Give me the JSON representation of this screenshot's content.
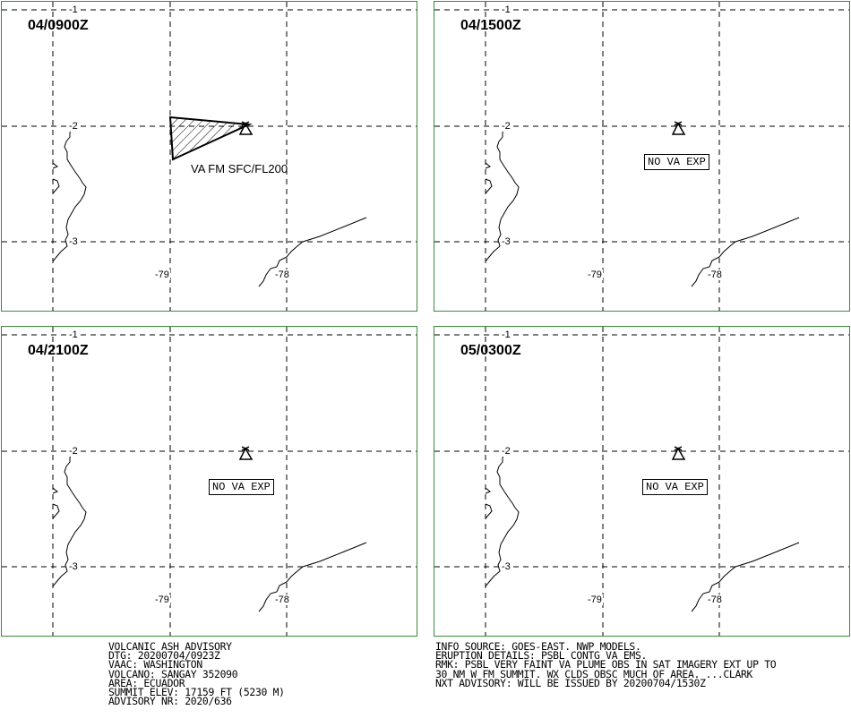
{
  "panels": [
    {
      "time": "04/0900Z",
      "ash_label": "VA FM SFC/FL200",
      "no_va": ""
    },
    {
      "time": "04/1500Z",
      "ash_label": "",
      "no_va": "NO VA EXP"
    },
    {
      "time": "04/2100Z",
      "ash_label": "",
      "no_va": "NO VA EXP"
    },
    {
      "time": "05/0300Z",
      "ash_label": "",
      "no_va": "NO VA EXP"
    }
  ],
  "grid_labels": {
    "lat_1": "-1",
    "lat_2": "-2",
    "lat_3": "-3",
    "lon_79": "-79",
    "lon_78": "-78"
  },
  "advisory_left": [
    "VOLCANIC ASH ADVISORY",
    "DTG: 20200704/0923Z",
    "VAAC: WASHINGTON",
    "VOLCANO: SANGAY 352090",
    "AREA: ECUADOR",
    "SUMMIT ELEV: 17159 FT (5230 M)",
    "ADVISORY NR: 2020/636"
  ],
  "advisory_right": [
    "INFO SOURCE: GOES-EAST. NWP MODELS.",
    "ERUPTION DETAILS: PSBL CONTG VA EMS.",
    "RMK: PSBL VERY FAINT VA PLUME OBS IN SAT IMAGERY EXT UP TO",
    "30 NM W FM SUMMIT. WX CLDS OBSC MUCH OF AREA. ...CLARK",
    "NXT ADVISORY: WILL BE ISSUED BY 20200704/1530Z"
  ],
  "colors": {
    "panel_border": "#3a8a3a",
    "ink": "#000000"
  }
}
